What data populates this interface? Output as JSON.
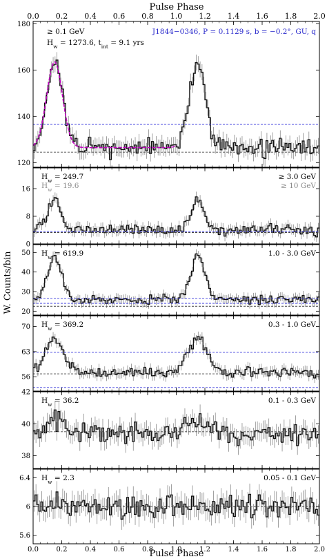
{
  "figure": {
    "x_axis_label_top": "Pulse Phase",
    "x_axis_label_bottom": "Pulse Phase",
    "y_axis_label": "W. Counts/bin",
    "x_ticks": [
      0.0,
      0.2,
      0.4,
      0.6,
      0.8,
      1.0,
      1.2,
      1.4,
      1.6,
      1.8,
      2.0
    ],
    "x_tick_labels": [
      "0.0",
      "0.2",
      "0.4",
      "0.6",
      "0.8",
      "1.0",
      "1.2",
      "1.4",
      "1.6",
      "1.8",
      "2.0"
    ]
  },
  "colors": {
    "histogram": "#111111",
    "error_bar": "#8a8a8a",
    "fit": "#c000c0",
    "blue_ref": "#3b3bdc",
    "gray_ref": "#444444",
    "label_blue": "#2a2acc",
    "label_gray": "#8a8a8a"
  },
  "chart_data": [
    {
      "type": "histogram",
      "ylim": [
        118,
        181
      ],
      "y_ticks": [
        120,
        140,
        160,
        180
      ],
      "texts": {
        "energy": "≥ 0.1 GeV",
        "hw": "H",
        "hw_sub": "w",
        "hw_rest": " = 1273.6, t",
        "tint_sub": "int",
        "tint_rest": " = 9.1 yrs",
        "pulsar": "J1844−0346, P = 0.1129 s, b = −0.2°, GU, q"
      },
      "background_levels": [
        136.5
      ],
      "gray_levels": [
        124.5
      ],
      "peaks": [
        {
          "center": 0.15,
          "width": 0.055,
          "height": 37
        }
      ],
      "baseline": 126.5,
      "noise": 3.0,
      "has_fit": true
    },
    {
      "type": "histogram",
      "ylim": [
        0,
        22
      ],
      "y_ticks": [
        0,
        8,
        16
      ],
      "texts": {
        "hw_a": "H",
        "hw_a_sub": "w",
        "hw_a_value": " = 249.7",
        "hw_b": "H",
        "hw_b_sub": "w",
        "hw_b_value": " = 19.6",
        "energy_a": "≥ 3.0 GeV",
        "energy_b": "≥ 10 GeV"
      },
      "background_levels": [
        3.6
      ],
      "gray_levels": [
        3.3
      ],
      "peaks": [
        {
          "center": 0.15,
          "width": 0.045,
          "height": 9
        }
      ],
      "baseline": 4.0,
      "noise": 1.3,
      "has_fit": false
    },
    {
      "type": "histogram",
      "ylim": [
        18,
        54
      ],
      "y_ticks": [
        20,
        30,
        40,
        50
      ],
      "texts": {
        "hw": "H",
        "hw_sub": "w",
        "hw_value": " = 619.9",
        "energy": "1.0 - 3.0 GeV"
      },
      "background_levels": [
        24,
        26.5
      ],
      "gray_levels": [
        22.5
      ],
      "peaks": [
        {
          "center": 0.15,
          "width": 0.05,
          "height": 22
        }
      ],
      "baseline": 26.0,
      "noise": 2.0,
      "has_fit": false
    },
    {
      "type": "histogram",
      "ylim": [
        52,
        73
      ],
      "y_ticks": [
        56,
        63,
        70
      ],
      "texts": {
        "hw": "H",
        "hw_sub": "w",
        "hw_value": " = 369.2",
        "energy": "0.3 - 1.0 GeV"
      },
      "background_levels": [
        62.8,
        53.0
      ],
      "gray_levels": [
        56.8
      ],
      "peaks": [
        {
          "center": 0.15,
          "width": 0.065,
          "height": 9.5
        }
      ],
      "baseline": 57.2,
      "noise": 1.2,
      "has_fit": false
    },
    {
      "type": "histogram",
      "ylim": [
        37.2,
        42
      ],
      "y_ticks": [
        38,
        40,
        42
      ],
      "texts": {
        "hw": "H",
        "hw_sub": "w",
        "hw_value": " = 36.2",
        "energy": "0.1 - 0.3 GeV"
      },
      "background_levels": [],
      "gray_levels": [
        39.5
      ],
      "peaks": [
        {
          "center": 0.15,
          "width": 0.07,
          "height": 0.8
        }
      ],
      "baseline": 39.4,
      "noise": 0.5,
      "has_fit": false
    },
    {
      "type": "histogram",
      "ylim": [
        5.48,
        6.52
      ],
      "y_ticks": [
        5.6,
        6.0,
        6.4
      ],
      "texts": {
        "hw": "H",
        "hw_sub": "w",
        "hw_value": " = 2.3",
        "energy": "0.05 - 0.1 GeV"
      },
      "background_levels": [],
      "gray_levels": [
        6.0
      ],
      "peaks": [],
      "baseline": 6.0,
      "noise": 0.13,
      "has_fit": false
    }
  ]
}
